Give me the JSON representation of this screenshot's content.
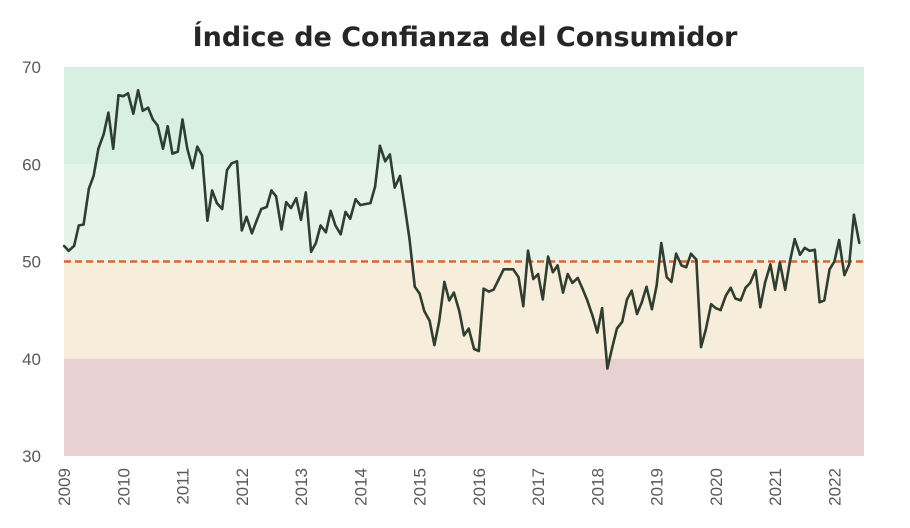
{
  "chart_data": {
    "type": "line",
    "title": "Índice de Confianza del Consumidor",
    "xlabel": "",
    "ylabel": "",
    "ylim": [
      30,
      70
    ],
    "yticks": [
      "30",
      "40",
      "50",
      "60",
      "70"
    ],
    "xticks": [
      "2009",
      "2010",
      "2011",
      "2012",
      "2013",
      "2014",
      "2015",
      "2016",
      "2017",
      "2018",
      "2019",
      "2020",
      "2021",
      "2022"
    ],
    "xrange": [
      2009.0,
      2022.5
    ],
    "grid": false,
    "legend": "none",
    "reference_line": {
      "value": 50,
      "color": "#e0622c",
      "style": "dashed"
    },
    "bands": [
      {
        "from": 60,
        "to": 70,
        "color": "#d7f0e1"
      },
      {
        "from": 50,
        "to": 60,
        "color": "#e4f4e9"
      },
      {
        "from": 40,
        "to": 50,
        "color": "#f6eedb"
      },
      {
        "from": 30,
        "to": 40,
        "color": "#e9d1d1"
      }
    ],
    "series": [
      {
        "name": "Índice de Confianza del Consumidor",
        "color": "#2f3e30",
        "x": [
          2009.0,
          2009.08,
          2009.17,
          2009.25,
          2009.33,
          2009.42,
          2009.5,
          2009.58,
          2009.67,
          2009.75,
          2009.83,
          2009.92,
          2010.0,
          2010.08,
          2010.17,
          2010.25,
          2010.33,
          2010.42,
          2010.5,
          2010.58,
          2010.67,
          2010.75,
          2010.83,
          2010.92,
          2011.0,
          2011.08,
          2011.17,
          2011.25,
          2011.33,
          2011.42,
          2011.5,
          2011.58,
          2011.67,
          2011.75,
          2011.83,
          2011.92,
          2012.0,
          2012.08,
          2012.17,
          2012.25,
          2012.33,
          2012.42,
          2012.5,
          2012.58,
          2012.67,
          2012.75,
          2012.83,
          2012.92,
          2013.0,
          2013.08,
          2013.17,
          2013.25,
          2013.33,
          2013.42,
          2013.5,
          2013.58,
          2013.67,
          2013.75,
          2013.83,
          2013.92,
          2014.0,
          2014.08,
          2014.17,
          2014.25,
          2014.33,
          2014.42,
          2014.5,
          2014.58,
          2014.67,
          2014.75,
          2014.83,
          2014.92,
          2015.0,
          2015.08,
          2015.17,
          2015.25,
          2015.33,
          2015.42,
          2015.5,
          2015.58,
          2015.67,
          2015.75,
          2015.83,
          2015.92,
          2016.0,
          2016.08,
          2016.17,
          2016.25,
          2016.33,
          2016.42,
          2016.5,
          2016.58,
          2016.67,
          2016.75,
          2016.83,
          2016.92,
          2017.0,
          2017.08,
          2017.17,
          2017.25,
          2017.33,
          2017.42,
          2017.5,
          2017.58,
          2017.67,
          2017.75,
          2017.83,
          2017.92,
          2018.0,
          2018.08,
          2018.17,
          2018.25,
          2018.33,
          2018.42,
          2018.5,
          2018.58,
          2018.67,
          2018.75,
          2018.83,
          2018.92,
          2019.0,
          2019.08,
          2019.17,
          2019.25,
          2019.33,
          2019.42,
          2019.5,
          2019.58,
          2019.67,
          2019.75,
          2019.83,
          2019.92,
          2020.0,
          2020.08,
          2020.17,
          2020.25,
          2020.33,
          2020.42,
          2020.5,
          2020.58,
          2020.67,
          2020.75,
          2020.83,
          2020.92,
          2021.0,
          2021.08,
          2021.17,
          2021.25,
          2021.33,
          2021.42,
          2021.5,
          2021.58,
          2021.67,
          2021.75,
          2021.83,
          2021.92,
          2022.0,
          2022.08,
          2022.17,
          2022.25,
          2022.33,
          2022.42
        ],
        "values": [
          51.6,
          51.1,
          51.6,
          53.7,
          53.8,
          57.5,
          58.8,
          61.6,
          63.1,
          65.3,
          61.6,
          67.1,
          67.0,
          67.3,
          65.2,
          67.6,
          65.5,
          65.8,
          64.6,
          64.0,
          61.6,
          63.9,
          61.1,
          61.3,
          64.6,
          61.6,
          59.6,
          61.8,
          60.9,
          54.2,
          57.3,
          56.0,
          55.4,
          59.4,
          60.1,
          60.3,
          53.2,
          54.6,
          52.9,
          54.2,
          55.4,
          55.6,
          57.3,
          56.7,
          53.3,
          56.1,
          55.5,
          56.5,
          54.3,
          57.1,
          51.0,
          51.9,
          53.7,
          53.0,
          55.2,
          53.7,
          52.8,
          55.1,
          54.4,
          56.4,
          55.8,
          55.9,
          56.0,
          57.7,
          61.9,
          60.3,
          61.0,
          57.6,
          58.8,
          55.7,
          52.3,
          47.4,
          46.7,
          44.9,
          43.9,
          41.4,
          43.8,
          47.9,
          46.0,
          46.8,
          44.9,
          42.4,
          43.1,
          41.0,
          40.8,
          47.2,
          46.9,
          47.1,
          48.1,
          49.2,
          49.2,
          49.2,
          48.4,
          45.4,
          51.1,
          48.2,
          48.7,
          46.1,
          50.5,
          48.9,
          49.6,
          46.8,
          48.7,
          47.8,
          48.3,
          47.2,
          46.0,
          44.4,
          42.7,
          45.2,
          39.0,
          41.1,
          43.1,
          43.8,
          46.1,
          47.0,
          44.6,
          45.8,
          47.4,
          45.1,
          47.5,
          51.9,
          48.4,
          47.9,
          50.8,
          49.6,
          49.4,
          50.8,
          50.2,
          41.2,
          43.0,
          45.6,
          45.2,
          45.0,
          46.5,
          47.3,
          46.2,
          46.0,
          47.3,
          47.8,
          49.1,
          45.3,
          47.8,
          49.7,
          47.1,
          49.9,
          47.1,
          50.0,
          52.3,
          50.7,
          51.4,
          51.1,
          51.2,
          45.8,
          46.0,
          49.2,
          50.0,
          52.2,
          48.6,
          49.7,
          54.8,
          51.9
        ]
      }
    ]
  }
}
